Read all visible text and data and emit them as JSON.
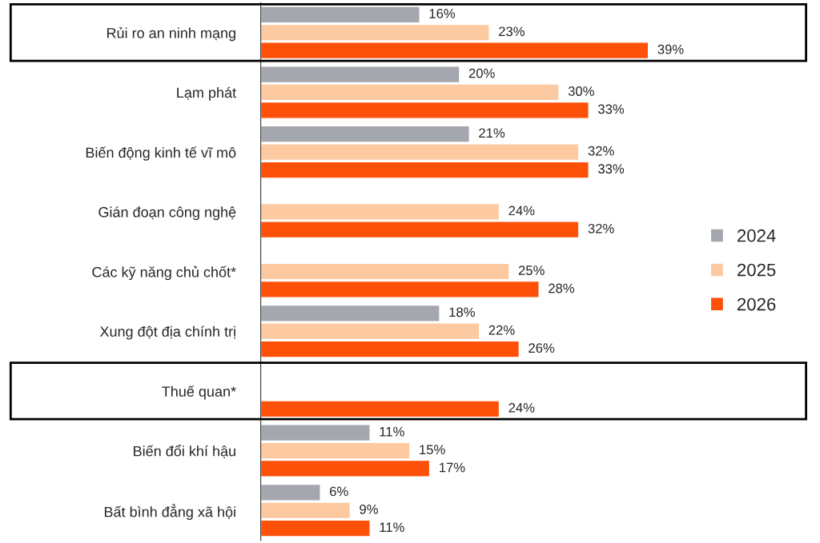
{
  "chart_data": {
    "type": "bar",
    "orientation": "horizontal",
    "legend": "right",
    "grid": false,
    "categories": [
      "Rủi ro an ninh mạng",
      "Lạm phát",
      "Biến động kinh tế vĩ mô",
      "Gián đoạn công nghệ",
      "Các kỹ năng chủ chốt*",
      "Xung đột địa chính trị",
      "Thuế quan*",
      "Biến đổi khí hậu",
      "Bất bình đẳng xã hội"
    ],
    "series": [
      {
        "name": "2024",
        "color": "#a5a7af",
        "values": [
          16,
          20,
          21,
          null,
          null,
          18,
          null,
          11,
          6
        ],
        "value_labels": [
          "16%",
          "20%",
          "21%",
          null,
          null,
          "18%",
          null,
          "11%",
          "6%"
        ]
      },
      {
        "name": "2025",
        "color": "#fdc9a0",
        "values": [
          23,
          30,
          32,
          24,
          25,
          22,
          null,
          15,
          9
        ],
        "value_labels": [
          "23%",
          "30%",
          "32%",
          "24%",
          "25%",
          "22%",
          null,
          "15%",
          "9%"
        ]
      },
      {
        "name": "2026",
        "color": "#fd5109",
        "values": [
          39,
          33,
          33,
          32,
          28,
          26,
          24,
          17,
          11
        ],
        "value_labels": [
          "39%",
          "33%",
          "33%",
          "32%",
          "28%",
          "26%",
          "24%",
          "17%",
          "11%"
        ]
      }
    ]
  }
}
